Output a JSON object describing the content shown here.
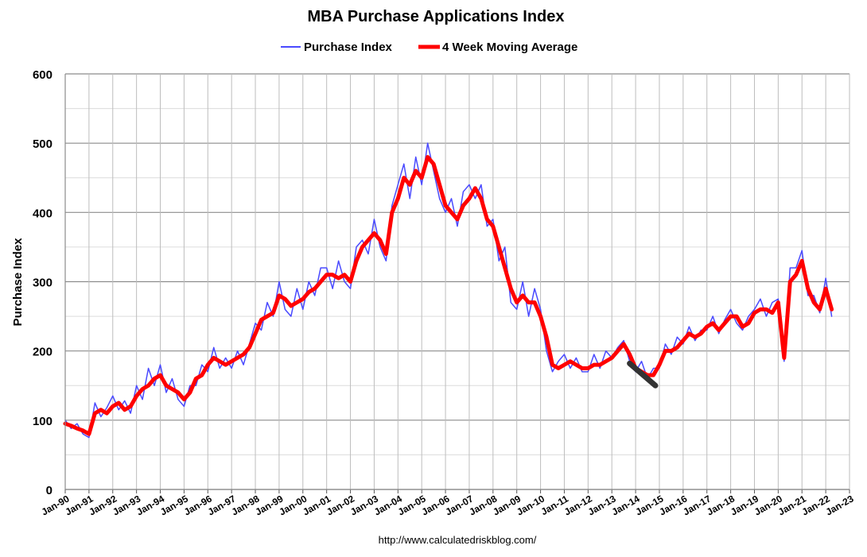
{
  "chart_data": {
    "type": "line",
    "title": "MBA Purchase Applications Index",
    "ylabel": "Purchase Index",
    "xlabel": "",
    "source": "http://www.calculatedriskblog.com/",
    "ylim": [
      0,
      600
    ],
    "yticks": [
      0,
      100,
      200,
      300,
      400,
      500,
      600
    ],
    "xlim": [
      "1990-01",
      "2023-01"
    ],
    "xticks": [
      "Jan-90",
      "Jan-91",
      "Jan-92",
      "Jan-93",
      "Jan-94",
      "Jan-95",
      "Jan-96",
      "Jan-97",
      "Jan-98",
      "Jan-99",
      "Jan-00",
      "Jan-01",
      "Jan-02",
      "Jan-03",
      "Jan-04",
      "Jan-05",
      "Jan-06",
      "Jan-07",
      "Jan-08",
      "Jan-09",
      "Jan-10",
      "Jan-11",
      "Jan-12",
      "Jan-13",
      "Jan-14",
      "Jan-15",
      "Jan-16",
      "Jan-17",
      "Jan-18",
      "Jan-19",
      "Jan-20",
      "Jan-21",
      "Jan-22",
      "Jan-23"
    ],
    "grid": true,
    "legend_position": "top",
    "x_start": "1990-01",
    "x_step": "quarter",
    "series": [
      {
        "name": "Purchase Index",
        "color": "#4a4aff",
        "values": [
          100,
          88,
          95,
          80,
          75,
          125,
          105,
          118,
          135,
          115,
          128,
          110,
          150,
          130,
          175,
          150,
          180,
          140,
          160,
          130,
          120,
          150,
          150,
          180,
          170,
          205,
          175,
          190,
          175,
          200,
          180,
          210,
          240,
          230,
          270,
          250,
          300,
          260,
          250,
          290,
          260,
          300,
          280,
          320,
          320,
          290,
          330,
          300,
          290,
          350,
          360,
          340,
          390,
          350,
          330,
          410,
          440,
          470,
          420,
          480,
          440,
          500,
          460,
          420,
          400,
          420,
          380,
          430,
          440,
          420,
          440,
          380,
          390,
          330,
          350,
          270,
          260,
          300,
          250,
          290,
          260,
          200,
          170,
          185,
          195,
          175,
          190,
          170,
          170,
          195,
          175,
          200,
          190,
          205,
          215,
          185,
          170,
          185,
          160,
          175,
          175,
          210,
          195,
          220,
          210,
          235,
          215,
          230,
          230,
          250,
          225,
          245,
          260,
          240,
          230,
          250,
          260,
          275,
          250,
          270,
          275,
          185,
          320,
          320,
          345,
          280,
          280,
          255,
          305,
          250
        ]
      },
      {
        "name": "4 Week Moving Average",
        "color": "#ff0000",
        "values": [
          95,
          92,
          88,
          85,
          80,
          110,
          115,
          110,
          120,
          125,
          115,
          120,
          135,
          145,
          150,
          160,
          165,
          150,
          145,
          140,
          130,
          140,
          160,
          165,
          180,
          190,
          185,
          180,
          185,
          190,
          195,
          205,
          225,
          245,
          250,
          255,
          280,
          275,
          265,
          270,
          275,
          285,
          290,
          300,
          310,
          310,
          305,
          310,
          300,
          330,
          350,
          360,
          370,
          360,
          340,
          400,
          420,
          450,
          440,
          460,
          450,
          480,
          470,
          440,
          410,
          400,
          390,
          410,
          420,
          435,
          420,
          390,
          380,
          350,
          320,
          290,
          270,
          280,
          270,
          270,
          250,
          220,
          180,
          175,
          180,
          185,
          180,
          175,
          175,
          180,
          180,
          185,
          190,
          200,
          210,
          195,
          175,
          170,
          165,
          165,
          180,
          200,
          200,
          205,
          215,
          225,
          220,
          225,
          235,
          240,
          230,
          240,
          250,
          250,
          235,
          240,
          255,
          260,
          260,
          255,
          270,
          190,
          300,
          310,
          330,
          290,
          270,
          260,
          290,
          260
        ]
      },
      {
        "color": "#333333",
        "points": [
          [
            "2013-10",
            182
          ],
          [
            "2014-11",
            150
          ]
        ]
      }
    ]
  }
}
